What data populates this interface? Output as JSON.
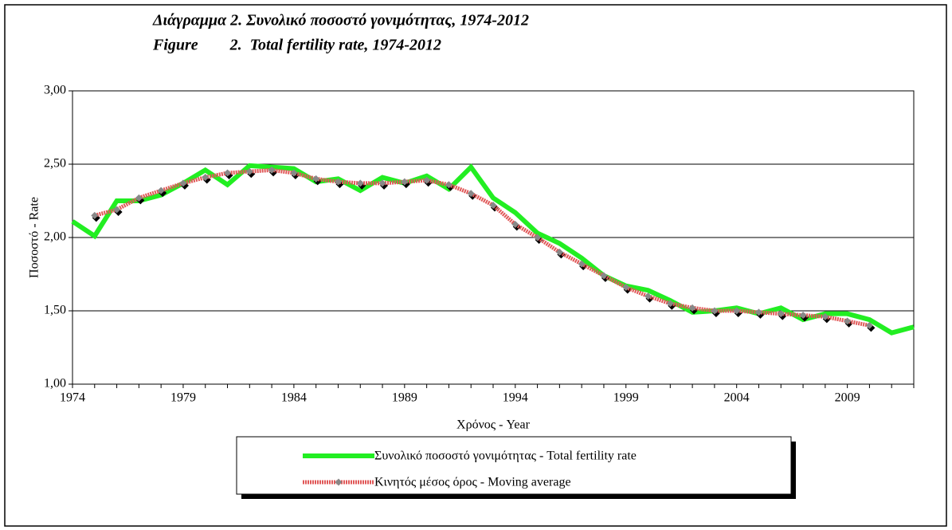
{
  "chart_data": {
    "type": "line",
    "title": "Διάγραμμα 2.  Συνολικό ποσοστό γονιμότητας, 1974-2012",
    "subtitle": "Figure        2.  Total fertility rate, 1974-2012",
    "x_label": "Χρόνος - Year",
    "y_label": "Ποσοστό - Rate",
    "x": [
      1974,
      1975,
      1976,
      1977,
      1978,
      1979,
      1980,
      1981,
      1982,
      1983,
      1984,
      1985,
      1986,
      1987,
      1988,
      1989,
      1990,
      1991,
      1992,
      1993,
      1994,
      1995,
      1996,
      1997,
      1998,
      1999,
      2000,
      2001,
      2002,
      2003,
      2004,
      2005,
      2006,
      2007,
      2008,
      2009,
      2010,
      2011,
      2012
    ],
    "series": [
      {
        "name": "Συνολικό ποσοστό γονιμότητας - Total fertility rate",
        "color": "#22ee22",
        "values": [
          2.11,
          2.01,
          2.25,
          2.25,
          2.29,
          2.37,
          2.46,
          2.36,
          2.49,
          2.48,
          2.47,
          2.38,
          2.4,
          2.32,
          2.41,
          2.37,
          2.42,
          2.33,
          2.48,
          2.27,
          2.17,
          2.03,
          1.96,
          1.86,
          1.74,
          1.67,
          1.64,
          1.57,
          1.49,
          1.5,
          1.52,
          1.48,
          1.52,
          1.44,
          1.48,
          1.48,
          1.44,
          1.35,
          1.39
        ]
      },
      {
        "name": "Κινητός μέσος όρος - Moving average",
        "color": "#e05858",
        "marker_color": "#888888",
        "values": [
          null,
          2.15,
          2.19,
          2.27,
          2.32,
          2.37,
          2.41,
          2.44,
          2.45,
          2.46,
          2.44,
          2.4,
          2.38,
          2.37,
          2.37,
          2.38,
          2.39,
          2.36,
          2.3,
          2.22,
          2.09,
          2.0,
          1.9,
          1.82,
          1.74,
          1.66,
          1.6,
          1.55,
          1.52,
          1.5,
          1.5,
          1.49,
          1.48,
          1.47,
          1.46,
          1.43,
          1.4,
          null,
          null
        ]
      }
    ],
    "xlim": [
      1974,
      2012
    ],
    "xticks": [
      1974,
      1979,
      1984,
      1989,
      1994,
      1999,
      2004,
      2009
    ],
    "ylim": [
      1,
      3
    ],
    "yticks": [
      {
        "value": 1,
        "label": "1,00"
      },
      {
        "value": 1.5,
        "label": "1,50"
      },
      {
        "value": 2,
        "label": "2,00"
      },
      {
        "value": 2.5,
        "label": "2,50"
      },
      {
        "value": 3,
        "label": "3,00"
      }
    ],
    "grid": true
  }
}
